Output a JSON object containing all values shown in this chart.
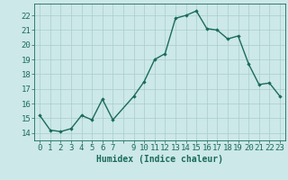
{
  "x": [
    0,
    1,
    2,
    3,
    4,
    5,
    6,
    7,
    9,
    10,
    11,
    12,
    13,
    14,
    15,
    16,
    17,
    18,
    19,
    20,
    21,
    22,
    23
  ],
  "y": [
    15.2,
    14.2,
    14.1,
    14.3,
    15.2,
    14.9,
    16.3,
    14.9,
    16.5,
    17.5,
    19.0,
    19.4,
    21.8,
    22.0,
    22.3,
    21.1,
    21.0,
    20.4,
    20.6,
    18.7,
    17.3,
    17.4,
    16.5
  ],
  "line_color": "#1a6b5a",
  "marker": "D",
  "marker_size": 1.8,
  "line_width": 1.0,
  "bg_color": "#cce8e8",
  "grid_color": "#aacccc",
  "xlabel": "Humidex (Indice chaleur)",
  "xlabel_fontsize": 7,
  "xtick_labels": [
    "0",
    "1",
    "2",
    "3",
    "4",
    "5",
    "6",
    "7",
    "",
    "9",
    "10",
    "11",
    "12",
    "13",
    "14",
    "15",
    "16",
    "17",
    "18",
    "19",
    "20",
    "21",
    "22",
    "23"
  ],
  "ytick_labels": [
    "14",
    "15",
    "16",
    "17",
    "18",
    "19",
    "20",
    "21",
    "22"
  ],
  "ytick_positions": [
    14,
    15,
    16,
    17,
    18,
    19,
    20,
    21,
    22
  ],
  "ylim": [
    13.5,
    22.8
  ],
  "xlim": [
    -0.5,
    23.5
  ],
  "tick_fontsize": 6.5,
  "tick_color": "#1a6b5a"
}
